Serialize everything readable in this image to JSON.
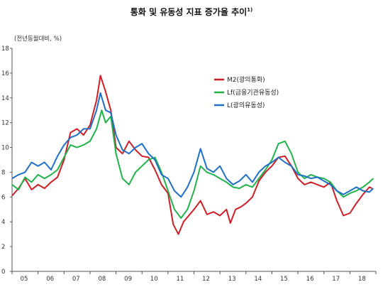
{
  "title": "통화 및 유동성 지표 증가율 추이",
  "title_note": "1)",
  "unit_label": "(전년동월대비, %)",
  "chart_data": {
    "type": "line",
    "title": "통화 및 유동성 지표 증가율 추이",
    "xlabel": "",
    "ylabel": "(전년동월대비, %)",
    "ylim": [
      0,
      18
    ],
    "yticks": [
      0,
      2,
      4,
      6,
      8,
      10,
      12,
      14,
      16,
      18
    ],
    "xticks": [
      "05",
      "06",
      "07",
      "08",
      "09",
      "10",
      "11",
      "12",
      "13",
      "14",
      "15",
      "16",
      "17",
      "18"
    ],
    "xlim": [
      2005.0,
      2019.0
    ],
    "grid": false,
    "legend_position": "top-right",
    "series": [
      {
        "name": "M2(광의통화)",
        "color": "#cc1f27",
        "points": [
          [
            2005.0,
            6.1
          ],
          [
            2005.25,
            6.7
          ],
          [
            2005.5,
            7.5
          ],
          [
            2005.75,
            6.6
          ],
          [
            2006.0,
            7.0
          ],
          [
            2006.25,
            6.7
          ],
          [
            2006.5,
            7.2
          ],
          [
            2006.75,
            7.6
          ],
          [
            2007.0,
            9.0
          ],
          [
            2007.25,
            11.2
          ],
          [
            2007.5,
            11.5
          ],
          [
            2007.75,
            11.0
          ],
          [
            2008.0,
            11.8
          ],
          [
            2008.25,
            13.8
          ],
          [
            2008.4,
            15.8
          ],
          [
            2008.6,
            14.5
          ],
          [
            2008.8,
            13.0
          ],
          [
            2009.0,
            10.0
          ],
          [
            2009.25,
            9.5
          ],
          [
            2009.5,
            10.5
          ],
          [
            2009.75,
            9.8
          ],
          [
            2010.0,
            9.3
          ],
          [
            2010.25,
            9.2
          ],
          [
            2010.5,
            8.2
          ],
          [
            2010.75,
            7.0
          ],
          [
            2011.0,
            6.3
          ],
          [
            2011.2,
            3.8
          ],
          [
            2011.4,
            3.0
          ],
          [
            2011.6,
            4.0
          ],
          [
            2011.8,
            4.5
          ],
          [
            2012.0,
            5.0
          ],
          [
            2012.25,
            5.7
          ],
          [
            2012.5,
            4.6
          ],
          [
            2012.75,
            4.8
          ],
          [
            2013.0,
            4.5
          ],
          [
            2013.25,
            5.0
          ],
          [
            2013.4,
            3.9
          ],
          [
            2013.6,
            5.0
          ],
          [
            2013.8,
            5.2
          ],
          [
            2014.0,
            5.5
          ],
          [
            2014.25,
            6.0
          ],
          [
            2014.5,
            7.3
          ],
          [
            2014.75,
            8.0
          ],
          [
            2015.0,
            8.5
          ],
          [
            2015.25,
            9.2
          ],
          [
            2015.5,
            9.3
          ],
          [
            2015.75,
            8.5
          ],
          [
            2016.0,
            7.5
          ],
          [
            2016.25,
            7.0
          ],
          [
            2016.5,
            7.2
          ],
          [
            2016.75,
            7.0
          ],
          [
            2017.0,
            6.8
          ],
          [
            2017.25,
            7.2
          ],
          [
            2017.5,
            5.7
          ],
          [
            2017.75,
            4.5
          ],
          [
            2018.0,
            4.7
          ],
          [
            2018.25,
            5.5
          ],
          [
            2018.5,
            6.2
          ],
          [
            2018.75,
            6.8
          ],
          [
            2018.85,
            6.7
          ]
        ]
      },
      {
        "name": "Lf(금융기관유동성)",
        "color": "#22b24c",
        "points": [
          [
            2005.0,
            7.0
          ],
          [
            2005.25,
            6.6
          ],
          [
            2005.5,
            7.6
          ],
          [
            2005.75,
            7.2
          ],
          [
            2006.0,
            7.8
          ],
          [
            2006.25,
            7.5
          ],
          [
            2006.5,
            7.8
          ],
          [
            2006.75,
            8.2
          ],
          [
            2007.0,
            9.2
          ],
          [
            2007.25,
            10.2
          ],
          [
            2007.5,
            10.0
          ],
          [
            2007.75,
            10.2
          ],
          [
            2008.0,
            10.5
          ],
          [
            2008.25,
            11.5
          ],
          [
            2008.45,
            13.0
          ],
          [
            2008.6,
            12.0
          ],
          [
            2008.8,
            12.5
          ],
          [
            2009.0,
            9.5
          ],
          [
            2009.25,
            7.5
          ],
          [
            2009.5,
            7.0
          ],
          [
            2009.75,
            8.0
          ],
          [
            2010.0,
            8.5
          ],
          [
            2010.25,
            9.0
          ],
          [
            2010.5,
            9.2
          ],
          [
            2010.75,
            8.0
          ],
          [
            2011.0,
            6.5
          ],
          [
            2011.25,
            5.0
          ],
          [
            2011.5,
            4.3
          ],
          [
            2011.75,
            5.0
          ],
          [
            2012.0,
            6.5
          ],
          [
            2012.25,
            8.5
          ],
          [
            2012.5,
            8.0
          ],
          [
            2012.75,
            7.8
          ],
          [
            2013.0,
            7.5
          ],
          [
            2013.25,
            7.2
          ],
          [
            2013.5,
            6.8
          ],
          [
            2013.75,
            6.7
          ],
          [
            2014.0,
            7.0
          ],
          [
            2014.25,
            6.8
          ],
          [
            2014.5,
            7.5
          ],
          [
            2014.75,
            8.2
          ],
          [
            2015.0,
            9.0
          ],
          [
            2015.25,
            10.3
          ],
          [
            2015.5,
            10.5
          ],
          [
            2015.75,
            9.5
          ],
          [
            2016.0,
            8.0
          ],
          [
            2016.25,
            7.5
          ],
          [
            2016.5,
            7.8
          ],
          [
            2016.75,
            7.6
          ],
          [
            2017.0,
            7.5
          ],
          [
            2017.25,
            7.2
          ],
          [
            2017.5,
            6.5
          ],
          [
            2017.75,
            6.0
          ],
          [
            2018.0,
            6.3
          ],
          [
            2018.25,
            6.5
          ],
          [
            2018.5,
            6.8
          ],
          [
            2018.75,
            7.2
          ],
          [
            2018.9,
            7.5
          ]
        ]
      },
      {
        "name": "L(광의유동성)",
        "color": "#1f6fc4",
        "points": [
          [
            2005.0,
            7.5
          ],
          [
            2005.25,
            7.8
          ],
          [
            2005.5,
            8.0
          ],
          [
            2005.75,
            8.8
          ],
          [
            2006.0,
            8.5
          ],
          [
            2006.25,
            8.8
          ],
          [
            2006.5,
            8.2
          ],
          [
            2006.75,
            9.3
          ],
          [
            2007.0,
            10.2
          ],
          [
            2007.25,
            10.8
          ],
          [
            2007.5,
            11.0
          ],
          [
            2007.75,
            11.5
          ],
          [
            2008.0,
            11.5
          ],
          [
            2008.25,
            13.0
          ],
          [
            2008.4,
            14.4
          ],
          [
            2008.6,
            13.0
          ],
          [
            2008.8,
            12.8
          ],
          [
            2009.0,
            11.0
          ],
          [
            2009.25,
            9.8
          ],
          [
            2009.5,
            9.5
          ],
          [
            2009.75,
            10.0
          ],
          [
            2010.0,
            10.3
          ],
          [
            2010.25,
            9.5
          ],
          [
            2010.5,
            9.0
          ],
          [
            2010.75,
            7.8
          ],
          [
            2011.0,
            7.5
          ],
          [
            2011.25,
            6.5
          ],
          [
            2011.5,
            6.0
          ],
          [
            2011.75,
            6.8
          ],
          [
            2012.0,
            8.0
          ],
          [
            2012.25,
            9.9
          ],
          [
            2012.5,
            8.3
          ],
          [
            2012.75,
            8.0
          ],
          [
            2013.0,
            8.5
          ],
          [
            2013.25,
            7.5
          ],
          [
            2013.5,
            7.0
          ],
          [
            2013.75,
            7.3
          ],
          [
            2014.0,
            7.8
          ],
          [
            2014.25,
            7.2
          ],
          [
            2014.5,
            8.0
          ],
          [
            2014.75,
            8.5
          ],
          [
            2015.0,
            8.8
          ],
          [
            2015.25,
            9.2
          ],
          [
            2015.5,
            8.8
          ],
          [
            2015.75,
            8.5
          ],
          [
            2016.0,
            7.8
          ],
          [
            2016.25,
            7.7
          ],
          [
            2016.5,
            7.5
          ],
          [
            2016.75,
            7.6
          ],
          [
            2017.0,
            7.3
          ],
          [
            2017.25,
            7.0
          ],
          [
            2017.5,
            6.5
          ],
          [
            2017.75,
            6.2
          ],
          [
            2018.0,
            6.5
          ],
          [
            2018.25,
            6.8
          ],
          [
            2018.5,
            6.5
          ],
          [
            2018.75,
            6.4
          ],
          [
            2018.9,
            6.7
          ]
        ]
      }
    ]
  }
}
